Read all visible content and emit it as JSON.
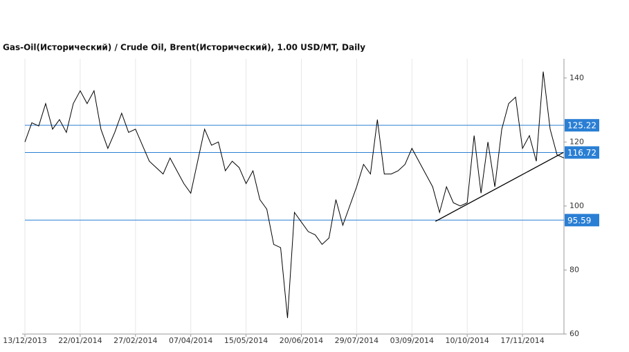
{
  "chart_data": {
    "type": "line",
    "title": "Gas-Oil(Исторический) / Crude Oil, Brent(Исторический), 1.00 USD/MT, Daily",
    "categories": [
      "13/12/2013",
      null,
      null,
      null,
      null,
      null,
      null,
      null,
      "22/01/2014",
      null,
      null,
      null,
      null,
      null,
      null,
      null,
      "27/02/2014",
      null,
      null,
      null,
      null,
      null,
      null,
      null,
      "07/04/2014",
      null,
      null,
      null,
      null,
      null,
      null,
      null,
      "15/05/2014",
      null,
      null,
      null,
      null,
      null,
      null,
      null,
      "20/06/2014",
      null,
      null,
      null,
      null,
      null,
      null,
      null,
      "29/07/2014",
      null,
      null,
      null,
      null,
      null,
      null,
      null,
      "03/09/2014",
      null,
      null,
      null,
      null,
      null,
      null,
      null,
      "10/10/2014",
      null,
      null,
      null,
      null,
      null,
      null,
      null,
      "17/11/2014",
      null,
      null,
      null,
      null,
      null,
      null
    ],
    "series": [
      {
        "color": "#000000",
        "values": [
          120,
          126,
          125,
          132,
          124,
          127,
          123,
          132,
          136,
          132,
          136,
          124,
          118,
          123,
          129,
          123,
          124,
          119,
          114,
          112,
          110,
          115,
          111,
          107,
          104,
          114,
          124,
          119,
          120,
          111,
          114,
          112,
          107,
          111,
          102,
          99,
          88,
          87,
          65,
          98,
          95,
          92,
          91,
          88,
          90,
          102,
          94,
          100,
          106,
          113,
          110,
          127,
          110,
          110,
          111,
          113,
          118,
          114,
          110,
          106,
          98,
          106,
          101,
          100,
          101,
          122,
          104,
          120,
          106,
          124,
          132,
          134,
          118,
          122,
          114,
          142,
          124,
          116,
          115
        ]
      }
    ],
    "levels": [
      125.22,
      116.72,
      95.59
    ],
    "level_color": "#2a7fd4",
    "trendline": {
      "x": [
        59.4,
        77.9
      ],
      "values": [
        95.2,
        116.7
      ]
    },
    "ylim": [
      60,
      146
    ],
    "yticks": [
      60,
      80,
      100,
      120,
      140
    ],
    "grid": true
  }
}
